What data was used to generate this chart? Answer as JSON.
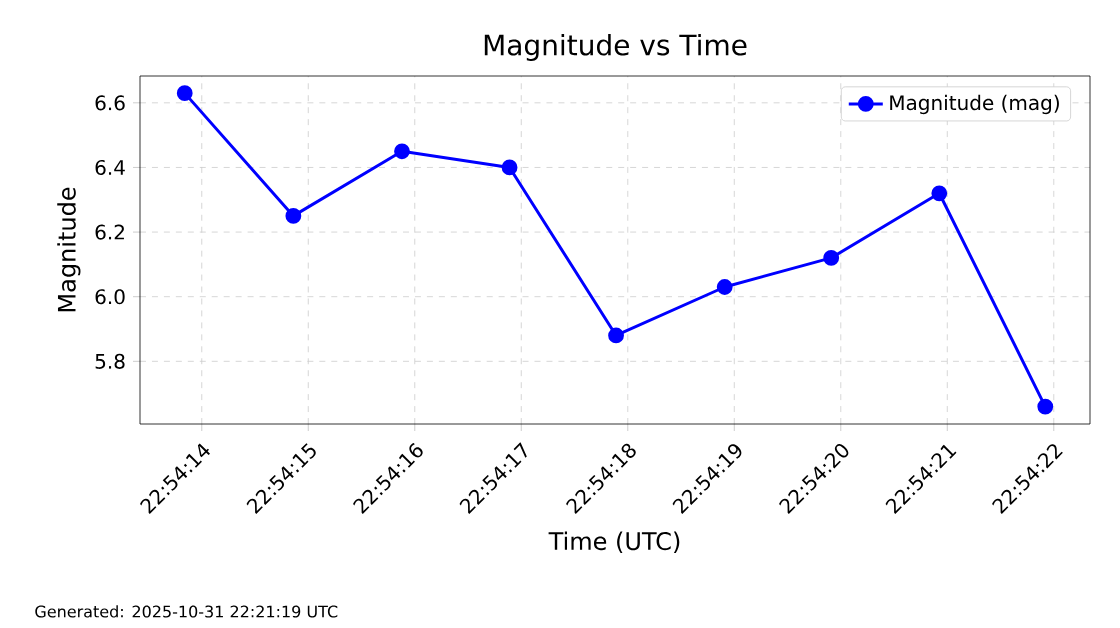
{
  "chart_data": {
    "type": "line",
    "title": "Magnitude vs Time",
    "xlabel": "Time (UTC)",
    "ylabel": "Magnitude",
    "x": [
      22.90384444,
      22.90412778,
      22.90441111,
      22.90469167,
      22.90496944,
      22.90525278,
      22.90553056,
      22.9058125,
      22.90608889
    ],
    "series": [
      {
        "name": "Magnitude (mag)",
        "color": "#0000ff",
        "values": [
          6.63,
          6.25,
          6.45,
          6.4,
          5.88,
          6.03,
          6.12,
          6.32,
          5.66
        ]
      }
    ],
    "xlim": [
      22.90372778,
      22.90620556
    ],
    "xticks": [
      {
        "value": 22.90388889,
        "label": "22:54:14"
      },
      {
        "value": 22.90416667,
        "label": "22:54:15"
      },
      {
        "value": 22.90444444,
        "label": "22:54:16"
      },
      {
        "value": 22.90472222,
        "label": "22:54:17"
      },
      {
        "value": 22.905,
        "label": "22:54:18"
      },
      {
        "value": 22.90527778,
        "label": "22:54:19"
      },
      {
        "value": 22.90555556,
        "label": "22:54:20"
      },
      {
        "value": 22.90583333,
        "label": "22:54:21"
      },
      {
        "value": 22.90611111,
        "label": "22:54:22"
      }
    ],
    "ylim": [
      5.606,
      6.683
    ],
    "yticks": [
      5.8,
      {
        "value": 6,
        "label": "6.0"
      },
      6.2,
      6.4,
      6.6
    ],
    "grid": true,
    "legend": "top right",
    "marker": "circle",
    "line_style": "solid",
    "annotations": [
      "Generated: 2025-10-31 22:21:19 UTC"
    ]
  }
}
